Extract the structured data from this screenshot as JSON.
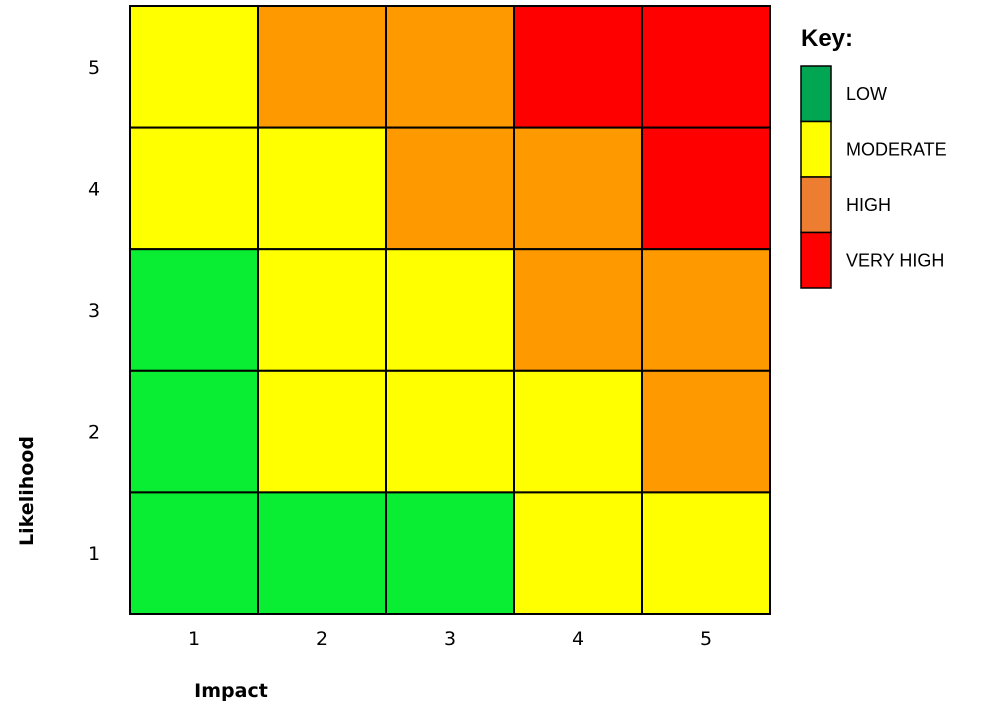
{
  "chart_data": {
    "type": "heatmap",
    "title": "",
    "xlabel": "Impact",
    "ylabel": "Likelihood",
    "x_categories": [
      "1",
      "2",
      "3",
      "4",
      "5"
    ],
    "y_categories": [
      "1",
      "2",
      "3",
      "4",
      "5"
    ],
    "cells_by_likelihood": [
      {
        "likelihood": "5",
        "levels": [
          "MODERATE",
          "HIGH",
          "HIGH",
          "VERY HIGH",
          "VERY HIGH"
        ]
      },
      {
        "likelihood": "4",
        "levels": [
          "MODERATE",
          "MODERATE",
          "HIGH",
          "HIGH",
          "VERY HIGH"
        ]
      },
      {
        "likelihood": "3",
        "levels": [
          "LOW",
          "MODERATE",
          "MODERATE",
          "HIGH",
          "HIGH"
        ]
      },
      {
        "likelihood": "2",
        "levels": [
          "LOW",
          "MODERATE",
          "MODERATE",
          "MODERATE",
          "HIGH"
        ]
      },
      {
        "likelihood": "1",
        "levels": [
          "LOW",
          "LOW",
          "LOW",
          "MODERATE",
          "MODERATE"
        ]
      }
    ],
    "legend": {
      "title": "Key:",
      "placement": "top-right",
      "items": [
        {
          "label": "LOW",
          "color": "#00a651"
        },
        {
          "label": "MODERATE",
          "color": "#ffff00"
        },
        {
          "label": "HIGH",
          "color": "#ed7d31"
        },
        {
          "label": "VERY HIGH",
          "color": "#ff0000"
        }
      ]
    },
    "cell_colors": {
      "LOW": "#09ee33",
      "MODERATE": "#ffff00",
      "HIGH": "#ff9900",
      "VERY HIGH": "#ff0000"
    },
    "grid": true
  }
}
